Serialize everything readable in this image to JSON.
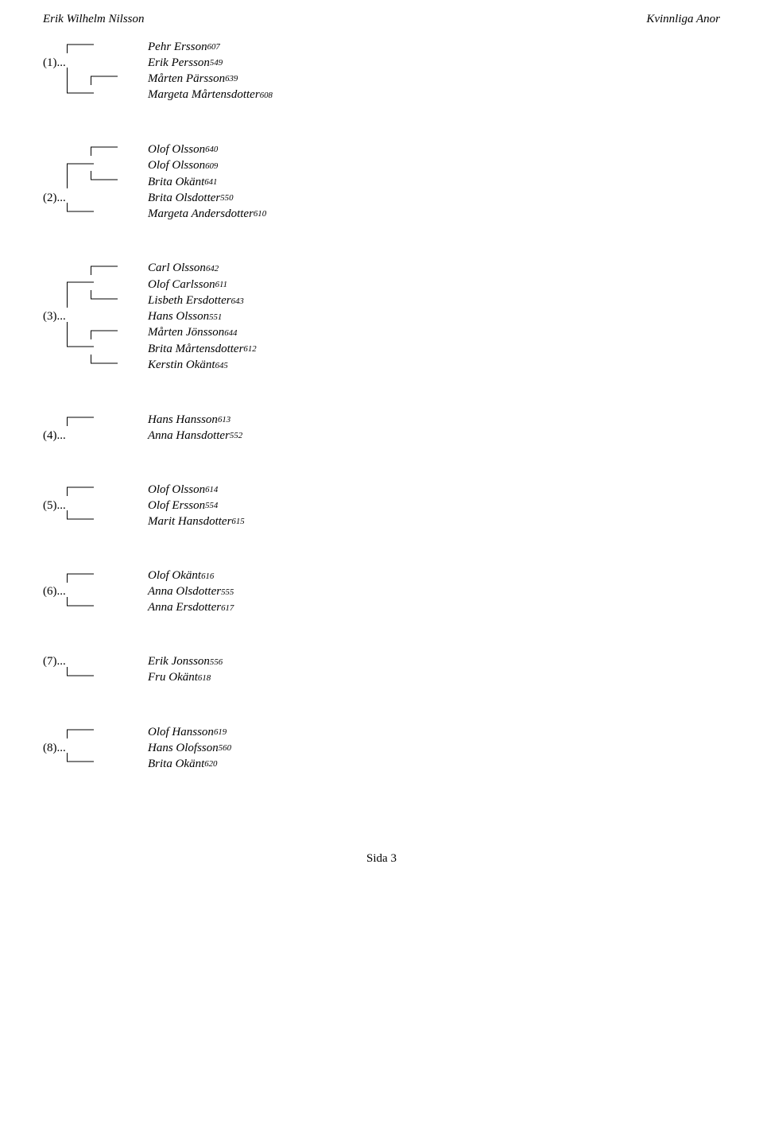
{
  "page": {
    "header_left": "Erik Wilhelm Nilsson",
    "header_right": "Kvinnliga Anor",
    "footer": "Sida 3"
  },
  "style": {
    "line_color": "#000000",
    "branch_width": 34,
    "branch_height": 14,
    "stroke_width": 1
  },
  "g1": {
    "l1_name": "Pehr Ersson",
    "l1_sup": "607",
    "l2_prefix": "(1)...",
    "l2_name": "Erik Persson",
    "l2_sup": "549",
    "l3_name": "Mårten Pärsson",
    "l3_sup": "639",
    "l4_name": "Margeta Mårtensdotter",
    "l4_sup": "608"
  },
  "g2": {
    "l1_name": "Olof Olsson",
    "l1_sup": "640",
    "l2_name": "Olof Olsson",
    "l2_sup": "609",
    "l3_name": "Brita Okänt",
    "l3_sup": "641",
    "l4_prefix": "(2)...",
    "l4_name": "Brita Olsdotter",
    "l4_sup": "550",
    "l5_name": "Margeta Andersdotter",
    "l5_sup": "610"
  },
  "g3": {
    "l1_name": "Carl Olsson",
    "l1_sup": "642",
    "l2_name": "Olof Carlsson",
    "l2_sup": "611",
    "l3_name": "Lisbeth Ersdotter",
    "l3_sup": "643",
    "l4_prefix": "(3)...",
    "l4_name": "Hans Olsson",
    "l4_sup": "551",
    "l5_name": "Mårten Jönsson",
    "l5_sup": "644",
    "l6_name": "Brita Mårtensdotter",
    "l6_sup": "612",
    "l7_name": "Kerstin Okänt",
    "l7_sup": "645"
  },
  "g4": {
    "l1_name": "Hans Hansson",
    "l1_sup": "613",
    "l2_prefix": "(4)...",
    "l2_name": "Anna Hansdotter",
    "l2_sup": "552"
  },
  "g5": {
    "l1_name": "Olof Olsson",
    "l1_sup": "614",
    "l2_prefix": "(5)...",
    "l2_name": "Olof Ersson",
    "l2_sup": "554",
    "l3_name": "Marit Hansdotter",
    "l3_sup": "615"
  },
  "g6": {
    "l1_name": "Olof Okänt",
    "l1_sup": "616",
    "l2_prefix": "(6)...",
    "l2_name": "Anna Olsdotter",
    "l2_sup": "555",
    "l3_name": "Anna Ersdotter",
    "l3_sup": "617"
  },
  "g7": {
    "l1_prefix": "(7)...",
    "l1_name": "Erik Jonsson",
    "l1_sup": "556",
    "l2_name": "Fru Okänt",
    "l2_sup": "618"
  },
  "g8": {
    "l1_name": "Olof Hansson",
    "l1_sup": "619",
    "l2_prefix": "(8)...",
    "l2_name": "Hans Olofsson",
    "l2_sup": "560",
    "l3_name": "Brita Okänt",
    "l3_sup": "620"
  }
}
